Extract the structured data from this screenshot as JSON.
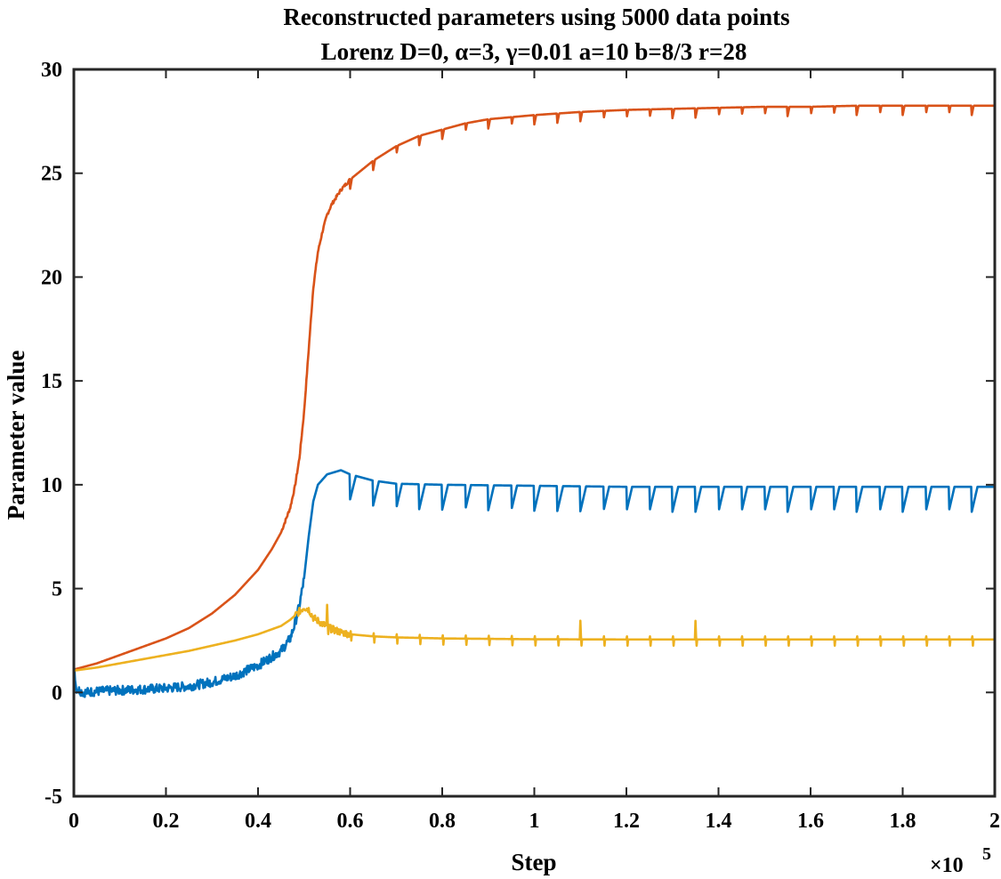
{
  "chart_data": {
    "type": "line",
    "title_line1": "Reconstructed parameters using 5000 data points",
    "title_line2": "Lorenz D=0, α=3, γ=0.01 a=10 b=8/3 r=28",
    "xlabel": "Step",
    "ylabel": "Parameter value",
    "x_multiplier_label": "×10",
    "x_multiplier_exponent": "5",
    "xlim": [
      0,
      2
    ],
    "ylim": [
      -5,
      30
    ],
    "x_ticks": [
      0,
      0.2,
      0.4,
      0.6,
      0.8,
      1,
      1.2,
      1.4,
      1.6,
      1.8,
      2
    ],
    "x_tick_labels": [
      "0",
      "0.2",
      "0.4",
      "0.6",
      "0.8",
      "1",
      "1.2",
      "1.4",
      "1.6",
      "1.8",
      "2"
    ],
    "y_ticks": [
      -5,
      0,
      5,
      10,
      15,
      20,
      25,
      30
    ],
    "y_tick_labels": [
      "-5",
      "0",
      "5",
      "10",
      "15",
      "20",
      "25",
      "30"
    ],
    "grid": false,
    "legend": "none",
    "series": [
      {
        "color": "#D95319",
        "x": [
          0,
          0.05,
          0.1,
          0.15,
          0.2,
          0.25,
          0.3,
          0.35,
          0.4,
          0.43,
          0.45,
          0.47,
          0.48,
          0.49,
          0.5,
          0.51,
          0.52,
          0.53,
          0.54,
          0.55,
          0.56,
          0.58,
          0.6,
          0.65,
          0.7,
          0.75,
          0.8,
          0.85,
          0.9,
          1.0,
          1.1,
          1.2,
          1.3,
          1.4,
          1.5,
          1.6,
          1.7,
          1.8,
          1.9,
          2.0
        ],
        "y": [
          1.1,
          1.4,
          1.8,
          2.2,
          2.6,
          3.1,
          3.8,
          4.7,
          5.9,
          6.9,
          7.7,
          8.9,
          9.9,
          11.3,
          13.5,
          16.5,
          19.5,
          21.2,
          22.2,
          23.0,
          23.5,
          24.2,
          24.7,
          25.6,
          26.3,
          26.8,
          27.1,
          27.4,
          27.6,
          27.8,
          27.95,
          28.05,
          28.1,
          28.15,
          28.2,
          28.2,
          28.25,
          28.25,
          28.25,
          28.25
        ],
        "spike_period": 0.05,
        "spike_start": 0.6,
        "spike_depth": 0.45
      },
      {
        "color": "#0072BD",
        "x": [
          0,
          0.005,
          0.02,
          0.05,
          0.1,
          0.15,
          0.2,
          0.25,
          0.3,
          0.35,
          0.4,
          0.45,
          0.47,
          0.48,
          0.49,
          0.5,
          0.51,
          0.52,
          0.53,
          0.55,
          0.58,
          0.6,
          0.65,
          0.7,
          0.8,
          1.0,
          1.2,
          1.4,
          1.6,
          1.8,
          2.0
        ],
        "y": [
          1.4,
          0.2,
          0.0,
          0.05,
          0.1,
          0.15,
          0.2,
          0.3,
          0.5,
          0.8,
          1.3,
          2.0,
          2.6,
          3.3,
          4.2,
          5.5,
          7.5,
          9.2,
          10.0,
          10.5,
          10.7,
          10.5,
          10.2,
          10.05,
          10.0,
          9.95,
          9.9,
          9.9,
          9.9,
          9.9,
          9.9
        ],
        "spike_period": 0.05,
        "spike_start": 0.6,
        "spike_depth": 1.2
      },
      {
        "color": "#EDB120",
        "x": [
          0,
          0.05,
          0.1,
          0.15,
          0.2,
          0.25,
          0.3,
          0.35,
          0.4,
          0.45,
          0.47,
          0.49,
          0.5,
          0.51,
          0.52,
          0.54,
          0.56,
          0.58,
          0.6,
          0.65,
          0.7,
          0.8,
          0.9,
          1.0,
          1.2,
          1.4,
          1.6,
          1.8,
          2.0
        ],
        "y": [
          1.05,
          1.2,
          1.4,
          1.6,
          1.8,
          2.0,
          2.25,
          2.5,
          2.8,
          3.2,
          3.5,
          3.9,
          4.1,
          4.0,
          3.6,
          3.3,
          3.05,
          2.9,
          2.8,
          2.7,
          2.65,
          2.6,
          2.58,
          2.56,
          2.55,
          2.55,
          2.55,
          2.55,
          2.55
        ],
        "spike_period": 0.05,
        "spike_start": 0.55,
        "spike_up": 0.9,
        "spike_down": 0.6
      }
    ]
  }
}
